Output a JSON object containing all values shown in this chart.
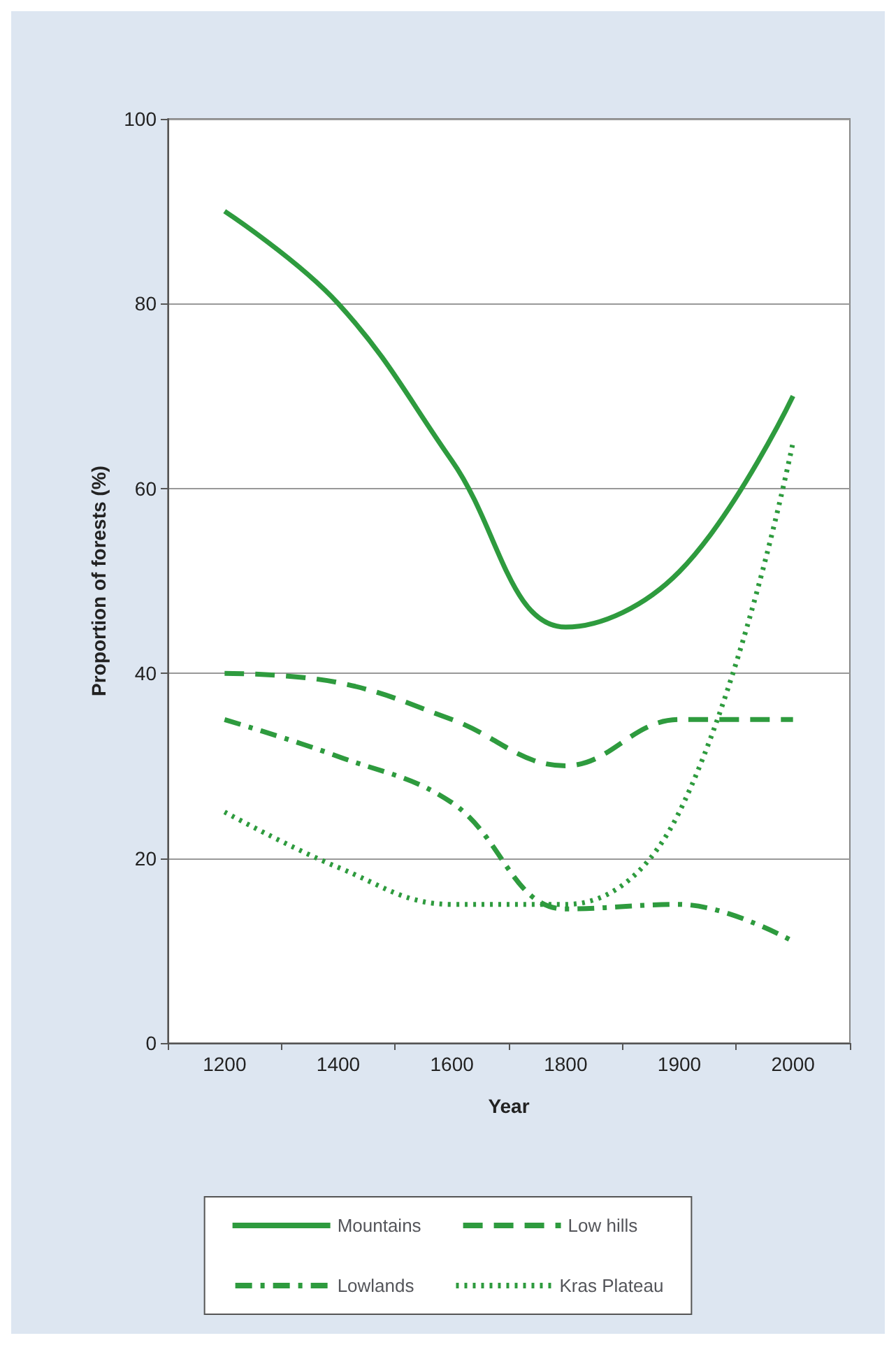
{
  "chart_data": {
    "type": "line",
    "xlabel": "Year",
    "ylabel": "Proportion of forests (%)",
    "categories": [
      "1200",
      "1400",
      "1600",
      "1800",
      "1900",
      "2000"
    ],
    "ylim": [
      0,
      100
    ],
    "yticks": [
      0,
      20,
      40,
      60,
      80,
      100
    ],
    "grid": "y",
    "legend": "bottom",
    "marker": "none",
    "series": [
      {
        "name": "Mountains",
        "color": "#2e9b3e",
        "line_style": "solid",
        "values": [
          90,
          80,
          63,
          45,
          51,
          70
        ]
      },
      {
        "name": "Low hills",
        "color": "#2e9b3e",
        "line_style": "dashed",
        "values": [
          40,
          39,
          35,
          30,
          35,
          35
        ]
      },
      {
        "name": "Lowlands",
        "color": "#2e9b3e",
        "line_style": "dashdot",
        "values": [
          35,
          31,
          26,
          14.5,
          15,
          11
        ]
      },
      {
        "name": "Kras Plateau",
        "color": "#2e9b3e",
        "line_style": "dotted",
        "values": [
          25,
          19,
          15,
          15,
          25,
          65
        ]
      }
    ]
  }
}
